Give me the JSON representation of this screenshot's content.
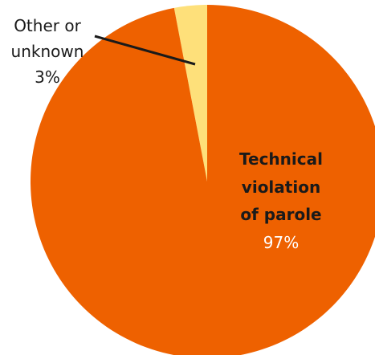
{
  "chart_data": {
    "type": "pie",
    "slices": [
      {
        "label_lines": [
          "Technical",
          "violation",
          "of parole"
        ],
        "percent_label": "97%",
        "value": 97,
        "color": "#EE6100"
      },
      {
        "label_lines": [
          "Other or",
          "unknown"
        ],
        "percent_label": "3%",
        "value": 3,
        "color": "#FEE07A"
      }
    ],
    "start_angle_deg": 0,
    "direction": "counterclockwise",
    "label_text_color": "#1a1a1a",
    "callout_line_color": "#1a1a1a"
  }
}
